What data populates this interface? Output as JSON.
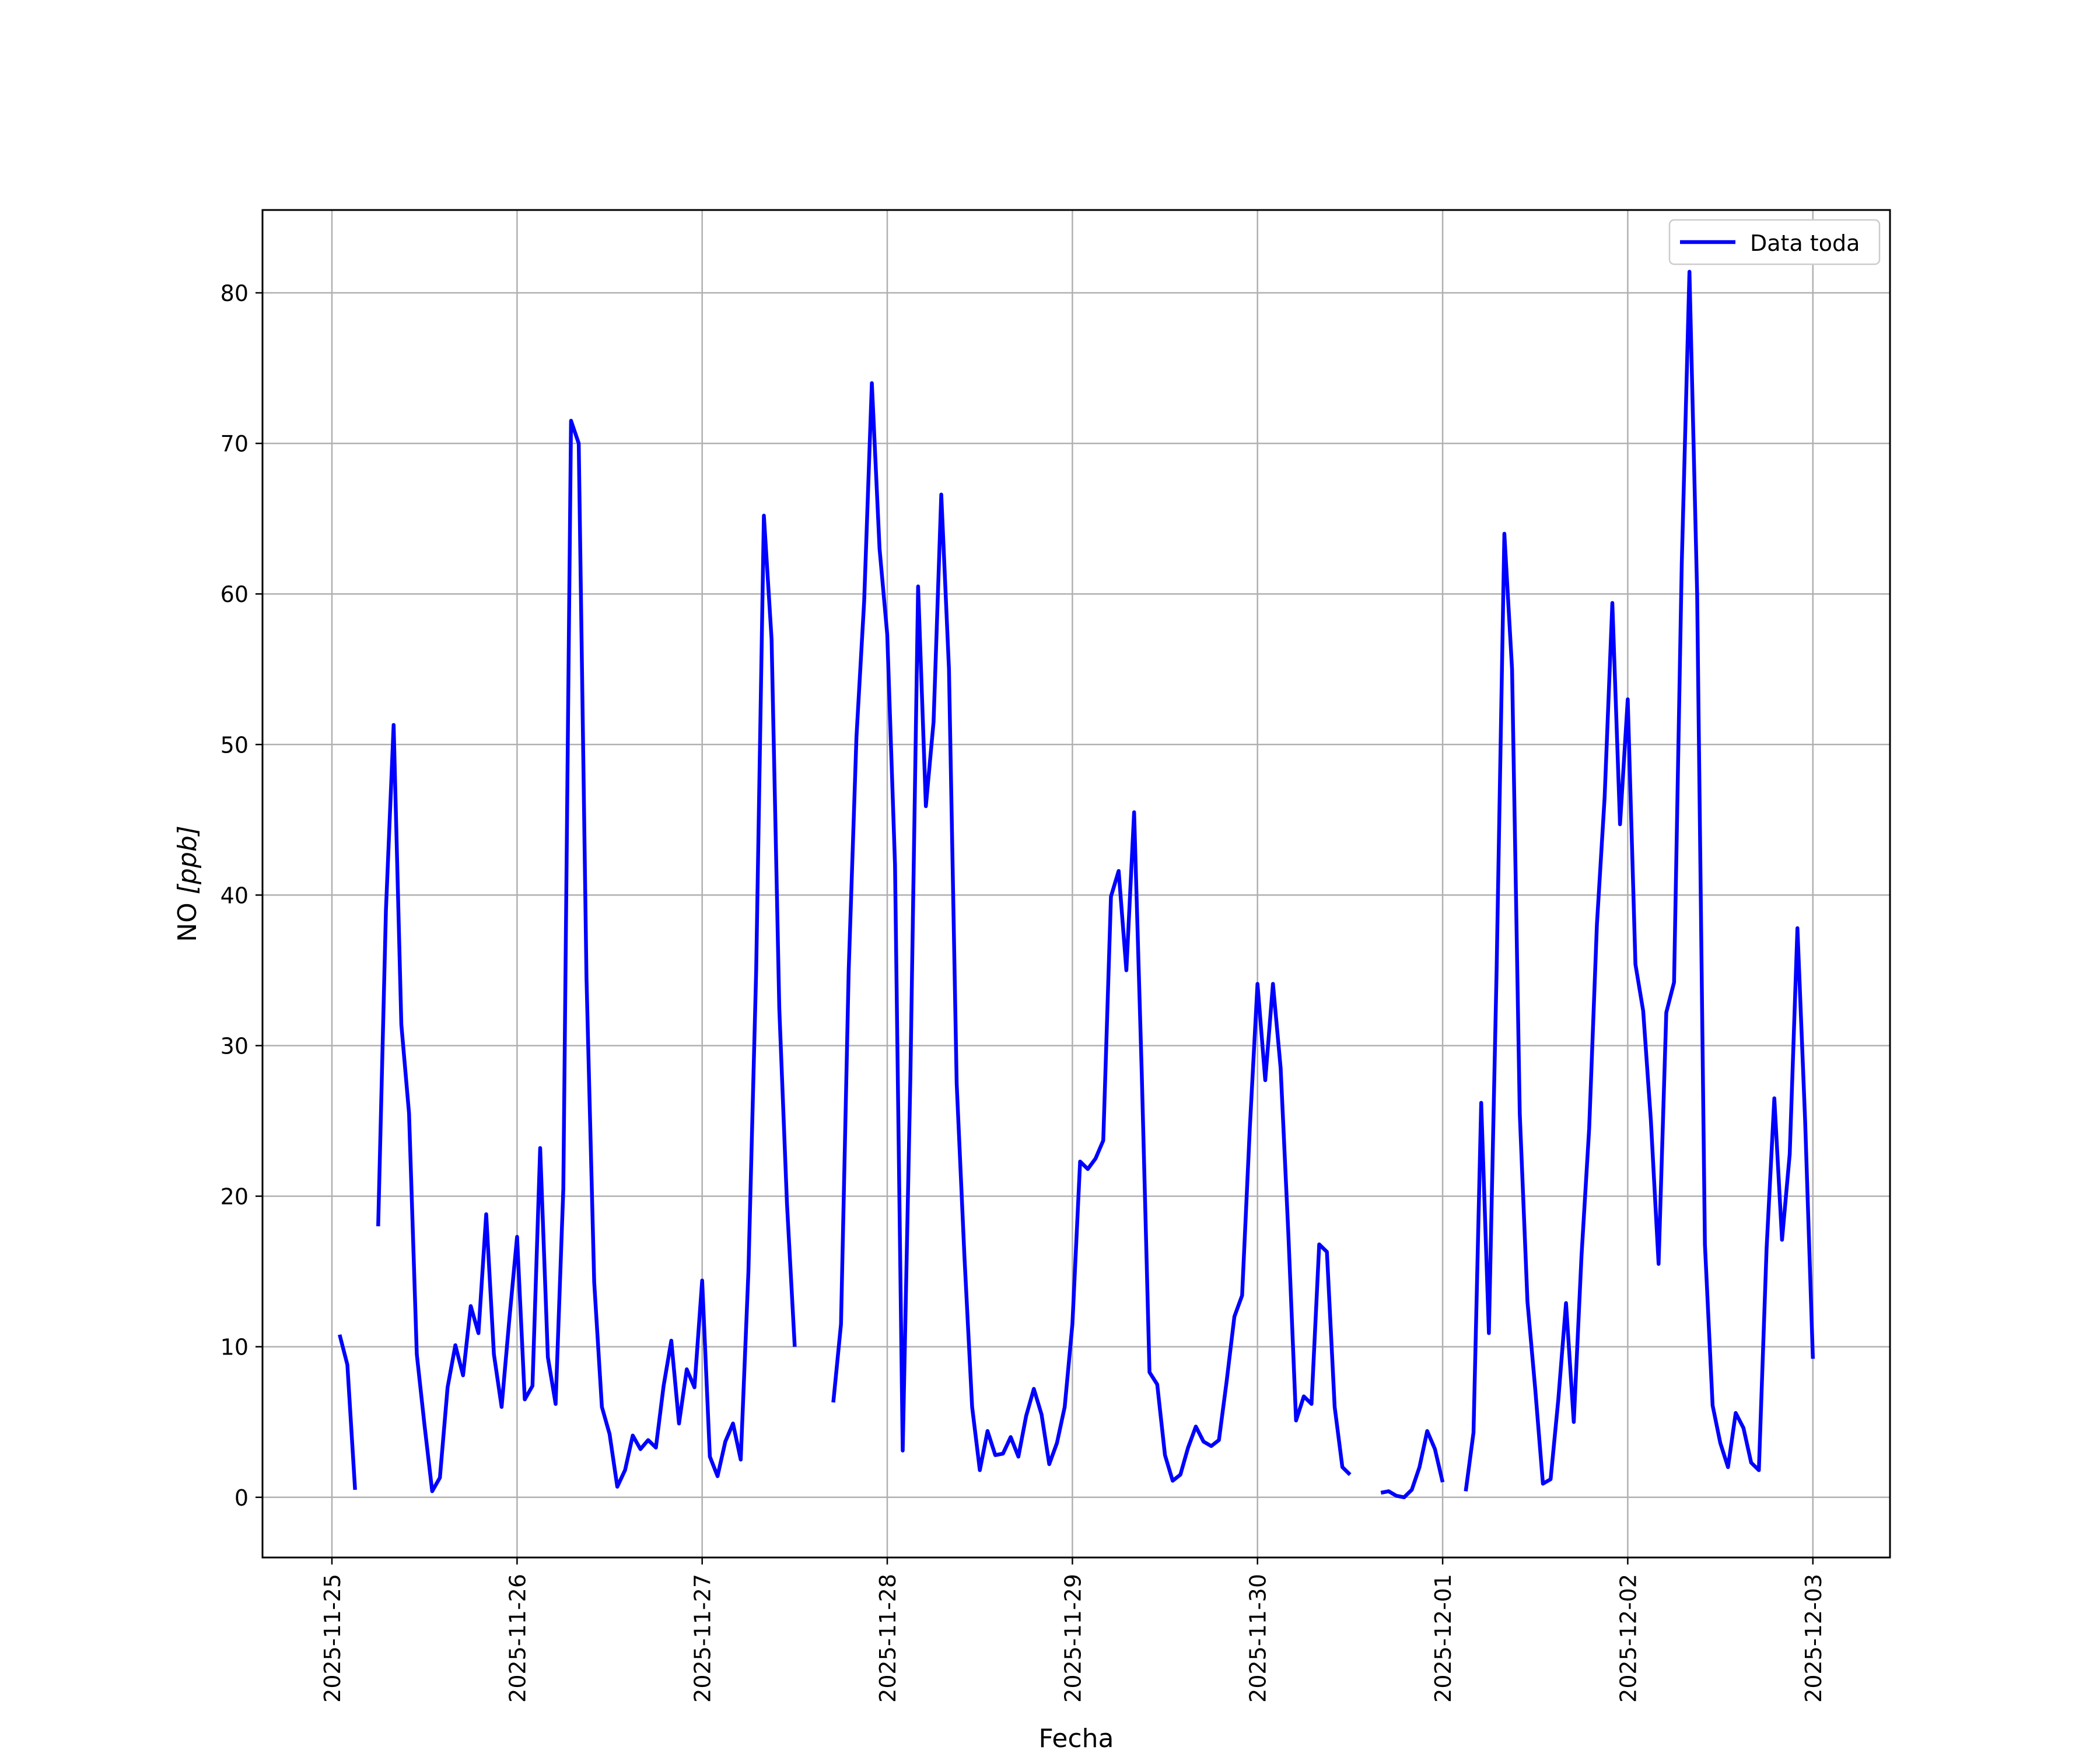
{
  "chart_data": {
    "type": "line",
    "title": "",
    "xlabel": "Fecha",
    "ylabel_prefix": "NO ",
    "ylabel_unit": "[ppb]",
    "xlim": [
      "2025-11-24T15:00",
      "2025-12-03T10:00"
    ],
    "ylim": [
      -4,
      85.5
    ],
    "xticks": [
      "2025-11-25",
      "2025-11-26",
      "2025-11-27",
      "2025-11-28",
      "2025-11-29",
      "2025-11-30",
      "2025-12-01",
      "2025-12-02",
      "2025-12-03"
    ],
    "yticks": [
      0,
      10,
      20,
      30,
      40,
      50,
      60,
      70,
      80
    ],
    "grid": true,
    "legend_position": "upper right",
    "series": [
      {
        "name": "Data toda",
        "color": "#0000ff",
        "segments": [
          [
            [
              "2025-11-25T01:00",
              10.8
            ],
            [
              "2025-11-25T02:00",
              8.8
            ],
            [
              "2025-11-25T03:00",
              0.5
            ]
          ],
          [
            [
              "2025-11-25T06:00",
              18.0
            ],
            [
              "2025-11-25T07:00",
              39.0
            ],
            [
              "2025-11-25T08:00",
              51.3
            ],
            [
              "2025-11-25T09:00",
              31.4
            ],
            [
              "2025-11-25T10:00",
              25.5
            ],
            [
              "2025-11-25T11:00",
              9.5
            ],
            [
              "2025-11-25T12:00",
              4.8
            ],
            [
              "2025-11-25T13:00",
              0.4
            ],
            [
              "2025-11-25T14:00",
              1.3
            ],
            [
              "2025-11-25T15:00",
              7.3
            ],
            [
              "2025-11-25T16:00",
              10.1
            ],
            [
              "2025-11-25T17:00",
              8.1
            ],
            [
              "2025-11-25T18:00",
              12.7
            ],
            [
              "2025-11-25T19:00",
              10.9
            ],
            [
              "2025-11-25T20:00",
              18.8
            ],
            [
              "2025-11-25T21:00",
              9.5
            ],
            [
              "2025-11-25T22:00",
              6.0
            ],
            [
              "2025-11-25T23:00",
              11.8
            ],
            [
              "2025-11-26T00:00",
              17.3
            ],
            [
              "2025-11-26T01:00",
              6.5
            ],
            [
              "2025-11-26T02:00",
              7.4
            ],
            [
              "2025-11-26T03:00",
              23.2
            ],
            [
              "2025-11-26T04:00",
              9.3
            ],
            [
              "2025-11-26T05:00",
              6.2
            ],
            [
              "2025-11-26T06:00",
              20.5
            ],
            [
              "2025-11-26T07:00",
              71.5
            ],
            [
              "2025-11-26T08:00",
              70.0
            ],
            [
              "2025-11-26T09:00",
              34.5
            ],
            [
              "2025-11-26T10:00",
              14.3
            ],
            [
              "2025-11-26T11:00",
              6.0
            ],
            [
              "2025-11-26T12:00",
              4.2
            ],
            [
              "2025-11-26T13:00",
              0.7
            ],
            [
              "2025-11-26T14:00",
              1.8
            ],
            [
              "2025-11-26T15:00",
              4.1
            ],
            [
              "2025-11-26T16:00",
              3.2
            ],
            [
              "2025-11-26T17:00",
              3.8
            ],
            [
              "2025-11-26T18:00",
              3.3
            ],
            [
              "2025-11-26T19:00",
              7.4
            ],
            [
              "2025-11-26T20:00",
              10.4
            ],
            [
              "2025-11-26T21:00",
              4.9
            ],
            [
              "2025-11-26T22:00",
              8.5
            ],
            [
              "2025-11-26T23:00",
              7.3
            ],
            [
              "2025-11-27T00:00",
              14.4
            ],
            [
              "2025-11-27T01:00",
              2.7
            ],
            [
              "2025-11-27T02:00",
              1.4
            ],
            [
              "2025-11-27T03:00",
              3.7
            ],
            [
              "2025-11-27T04:00",
              4.9
            ],
            [
              "2025-11-27T05:00",
              2.5
            ],
            [
              "2025-11-27T06:00",
              15.0
            ],
            [
              "2025-11-27T07:00",
              35.0
            ],
            [
              "2025-11-27T08:00",
              65.2
            ],
            [
              "2025-11-27T09:00",
              57.0
            ],
            [
              "2025-11-27T10:00",
              32.5
            ],
            [
              "2025-11-27T11:00",
              19.5
            ],
            [
              "2025-11-27T12:00",
              10.0
            ]
          ],
          [
            [
              "2025-11-27T17:00",
              6.3
            ],
            [
              "2025-11-27T18:00",
              11.5
            ],
            [
              "2025-11-27T19:00",
              35.0
            ],
            [
              "2025-11-27T20:00",
              50.5
            ],
            [
              "2025-11-27T21:00",
              59.5
            ],
            [
              "2025-11-27T22:00",
              74.0
            ],
            [
              "2025-11-27T23:00",
              63.0
            ],
            [
              "2025-11-28T00:00",
              57.3
            ],
            [
              "2025-11-28T01:00",
              42.0
            ],
            [
              "2025-11-28T02:00",
              3.1
            ],
            [
              "2025-11-28T03:00",
              28.0
            ],
            [
              "2025-11-28T04:00",
              60.5
            ],
            [
              "2025-11-28T05:00",
              45.9
            ],
            [
              "2025-11-28T06:00",
              51.5
            ],
            [
              "2025-11-28T07:00",
              66.6
            ],
            [
              "2025-11-28T08:00",
              55.0
            ],
            [
              "2025-11-28T09:00",
              27.5
            ],
            [
              "2025-11-28T10:00",
              16.0
            ],
            [
              "2025-11-28T11:00",
              6.0
            ],
            [
              "2025-11-28T12:00",
              1.8
            ],
            [
              "2025-11-28T13:00",
              4.4
            ],
            [
              "2025-11-28T14:00",
              2.8
            ],
            [
              "2025-11-28T15:00",
              2.9
            ],
            [
              "2025-11-28T16:00",
              4.0
            ],
            [
              "2025-11-28T17:00",
              2.7
            ],
            [
              "2025-11-28T18:00",
              5.4
            ],
            [
              "2025-11-28T19:00",
              7.2
            ],
            [
              "2025-11-28T20:00",
              5.5
            ],
            [
              "2025-11-28T21:00",
              2.2
            ],
            [
              "2025-11-28T22:00",
              3.6
            ],
            [
              "2025-11-28T23:00",
              6.0
            ],
            [
              "2025-11-29T00:00",
              11.5
            ],
            [
              "2025-11-29T01:00",
              22.3
            ],
            [
              "2025-11-29T02:00",
              21.8
            ],
            [
              "2025-11-29T03:00",
              22.5
            ],
            [
              "2025-11-29T04:00",
              23.7
            ],
            [
              "2025-11-29T05:00",
              39.9
            ],
            [
              "2025-11-29T06:00",
              41.6
            ],
            [
              "2025-11-29T07:00",
              35.0
            ],
            [
              "2025-11-29T08:00",
              45.5
            ],
            [
              "2025-11-29T09:00",
              28.0
            ],
            [
              "2025-11-29T10:00",
              8.3
            ],
            [
              "2025-11-29T11:00",
              7.5
            ],
            [
              "2025-11-29T12:00",
              2.8
            ],
            [
              "2025-11-29T13:00",
              1.1
            ],
            [
              "2025-11-29T14:00",
              1.5
            ],
            [
              "2025-11-29T15:00",
              3.3
            ],
            [
              "2025-11-29T16:00",
              4.7
            ],
            [
              "2025-11-29T17:00",
              3.7
            ],
            [
              "2025-11-29T18:00",
              3.4
            ],
            [
              "2025-11-29T19:00",
              3.8
            ],
            [
              "2025-11-29T20:00",
              7.7
            ],
            [
              "2025-11-29T21:00",
              12.0
            ],
            [
              "2025-11-29T22:00",
              13.4
            ],
            [
              "2025-11-29T23:00",
              24.5
            ],
            [
              "2025-11-30T00:00",
              34.1
            ],
            [
              "2025-11-30T01:00",
              27.7
            ],
            [
              "2025-11-30T02:00",
              34.1
            ],
            [
              "2025-11-30T03:00",
              28.5
            ],
            [
              "2025-11-30T04:00",
              17.5
            ],
            [
              "2025-11-30T05:00",
              5.1
            ],
            [
              "2025-11-30T06:00",
              6.7
            ],
            [
              "2025-11-30T07:00",
              6.2
            ],
            [
              "2025-11-30T08:00",
              16.8
            ],
            [
              "2025-11-30T09:00",
              16.3
            ],
            [
              "2025-11-30T10:00",
              6.0
            ],
            [
              "2025-11-30T11:00",
              2.0
            ],
            [
              "2025-11-30T12:00",
              1.5
            ]
          ],
          [
            [
              "2025-11-30T16:00",
              0.3
            ],
            [
              "2025-11-30T17:00",
              0.4
            ],
            [
              "2025-11-30T18:00",
              0.1
            ],
            [
              "2025-11-30T19:00",
              0.0
            ],
            [
              "2025-11-30T20:00",
              0.5
            ],
            [
              "2025-11-30T21:00",
              2.0
            ],
            [
              "2025-11-30T22:00",
              4.4
            ],
            [
              "2025-11-30T23:00",
              3.2
            ],
            [
              "2025-12-01T00:00",
              1.0
            ]
          ],
          [
            [
              "2025-12-01T03:00",
              0.4
            ],
            [
              "2025-12-01T04:00",
              4.3
            ],
            [
              "2025-12-01T05:00",
              26.2
            ],
            [
              "2025-12-01T06:00",
              10.9
            ],
            [
              "2025-12-01T07:00",
              35.0
            ],
            [
              "2025-12-01T08:00",
              64.0
            ],
            [
              "2025-12-01T09:00",
              55.0
            ],
            [
              "2025-12-01T10:00",
              25.5
            ],
            [
              "2025-12-01T11:00",
              13.0
            ],
            [
              "2025-12-01T12:00",
              7.2
            ],
            [
              "2025-12-01T13:00",
              0.9
            ],
            [
              "2025-12-01T14:00",
              1.2
            ],
            [
              "2025-12-01T15:00",
              6.5
            ],
            [
              "2025-12-01T16:00",
              12.9
            ],
            [
              "2025-12-01T17:00",
              5.0
            ],
            [
              "2025-12-01T18:00",
              16.0
            ],
            [
              "2025-12-01T19:00",
              24.5
            ],
            [
              "2025-12-01T20:00",
              38.0
            ],
            [
              "2025-12-01T21:00",
              46.5
            ],
            [
              "2025-12-01T22:00",
              59.4
            ],
            [
              "2025-12-01T23:00",
              44.7
            ],
            [
              "2025-12-02T00:00",
              53.0
            ],
            [
              "2025-12-02T01:00",
              35.4
            ],
            [
              "2025-12-02T02:00",
              32.3
            ],
            [
              "2025-12-02T03:00",
              25.0
            ],
            [
              "2025-12-02T04:00",
              15.5
            ],
            [
              "2025-12-02T05:00",
              32.2
            ],
            [
              "2025-12-02T06:00",
              34.2
            ],
            [
              "2025-12-02T07:00",
              62.0
            ],
            [
              "2025-12-02T08:00",
              81.4
            ],
            [
              "2025-12-02T09:00",
              60.0
            ],
            [
              "2025-12-02T10:00",
              16.8
            ],
            [
              "2025-12-02T11:00",
              6.1
            ],
            [
              "2025-12-02T12:00",
              3.6
            ],
            [
              "2025-12-02T13:00",
              2.0
            ],
            [
              "2025-12-02T14:00",
              5.6
            ],
            [
              "2025-12-02T15:00",
              4.6
            ],
            [
              "2025-12-02T16:00",
              2.3
            ],
            [
              "2025-12-02T17:00",
              1.8
            ],
            [
              "2025-12-02T18:00",
              16.5
            ],
            [
              "2025-12-02T19:00",
              26.5
            ],
            [
              "2025-12-02T20:00",
              17.1
            ],
            [
              "2025-12-02T21:00",
              22.8
            ],
            [
              "2025-12-02T22:00",
              37.8
            ],
            [
              "2025-12-02T23:00",
              25.0
            ],
            [
              "2025-12-03T00:00",
              9.2
            ]
          ]
        ]
      }
    ]
  }
}
